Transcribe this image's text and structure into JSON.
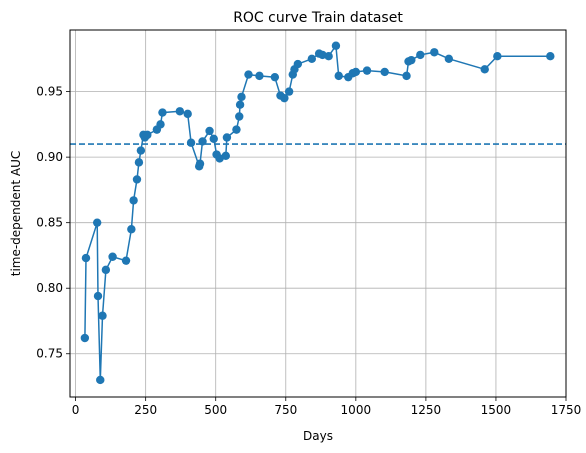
{
  "chart_data": {
    "type": "line",
    "title": "ROC curve Train dataset",
    "xlabel": "Days",
    "ylabel": "time-dependent AUC",
    "xlim": [
      -20,
      1750
    ],
    "ylim": [
      0.717,
      0.997
    ],
    "xticks": [
      0,
      250,
      500,
      750,
      1000,
      1250,
      1500,
      1750
    ],
    "yticks": [
      0.75,
      0.8,
      0.85,
      0.9,
      0.95
    ],
    "grid": true,
    "colors": {
      "series": "#1f77b4",
      "grid": "#b0b0b0"
    },
    "reference_line": {
      "y": 0.91,
      "style": "dashed"
    },
    "series": [
      {
        "marker": "circle",
        "x": [
          33,
          37,
          77,
          80,
          88,
          96,
          108,
          132,
          180,
          199,
          207,
          219,
          226,
          233,
          242,
          247,
          256,
          290,
          303,
          310,
          372,
          400,
          412,
          441,
          444,
          453,
          478,
          493,
          503,
          514,
          536,
          540,
          574,
          584,
          587,
          592,
          617,
          656,
          711,
          731,
          745,
          762,
          775,
          781,
          793,
          843,
          869,
          881,
          903,
          929,
          939,
          973,
          989,
          1000,
          1040,
          1103,
          1181,
          1188,
          1198,
          1230,
          1280,
          1332,
          1460,
          1505,
          1694
        ],
        "y": [
          0.762,
          0.823,
          0.85,
          0.794,
          0.73,
          0.779,
          0.814,
          0.824,
          0.821,
          0.845,
          0.867,
          0.883,
          0.896,
          0.905,
          0.917,
          0.915,
          0.917,
          0.921,
          0.925,
          0.934,
          0.935,
          0.933,
          0.911,
          0.893,
          0.895,
          0.912,
          0.92,
          0.914,
          0.902,
          0.899,
          0.901,
          0.915,
          0.921,
          0.931,
          0.94,
          0.946,
          0.963,
          0.962,
          0.961,
          0.947,
          0.945,
          0.95,
          0.963,
          0.967,
          0.971,
          0.975,
          0.979,
          0.978,
          0.977,
          0.985,
          0.962,
          0.961,
          0.964,
          0.965,
          0.966,
          0.965,
          0.962,
          0.973,
          0.974,
          0.978,
          0.98,
          0.975,
          0.967,
          0.977,
          0.977
        ]
      }
    ]
  }
}
